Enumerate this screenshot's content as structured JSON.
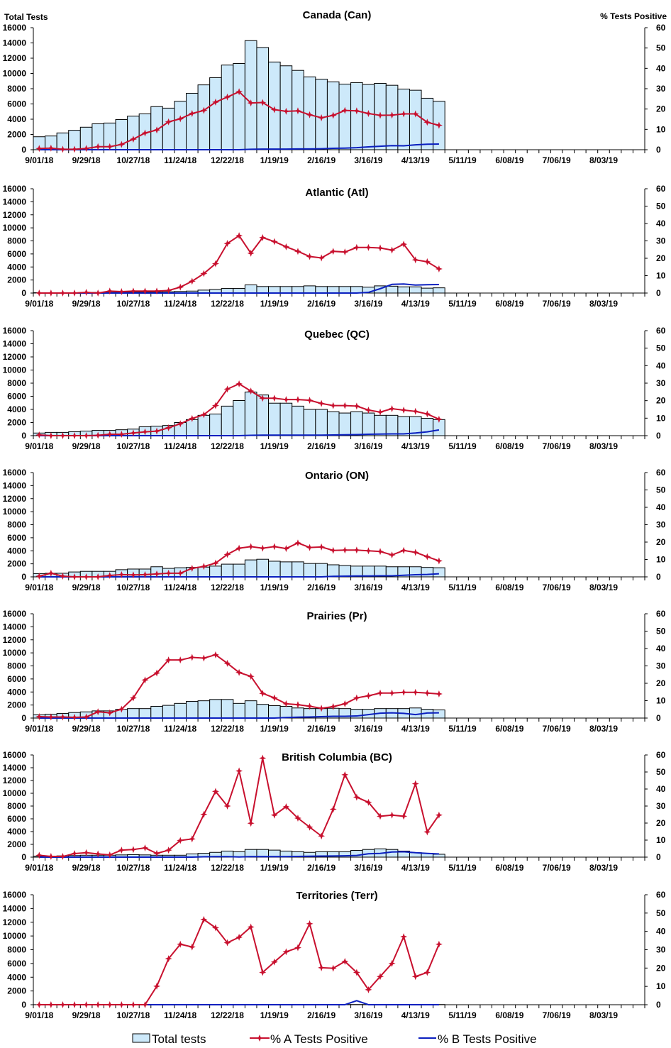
{
  "axis_titles": {
    "left": "Total Tests",
    "right": "% Tests Positive"
  },
  "legend": {
    "bars": "Total tests",
    "a": "% A Tests Positive",
    "b": "% B Tests Positive"
  },
  "colors": {
    "bar_fill": "#cde9fa",
    "bar_stroke": "#000000",
    "a_line": "#c8102e",
    "b_line": "#0a1fbf"
  },
  "x_tick_labels": [
    "9/01/18",
    "9/29/18",
    "10/27/18",
    "11/24/18",
    "12/22/18",
    "1/19/19",
    "2/16/19",
    "3/16/19",
    "4/13/19",
    "5/11/19",
    "6/08/19",
    "7/06/19",
    "8/03/19"
  ],
  "left_ticks": [
    0,
    2000,
    4000,
    6000,
    8000,
    10000,
    12000,
    14000,
    16000
  ],
  "right_ticks": [
    0,
    10,
    20,
    30,
    40,
    50,
    60
  ],
  "chart_data": [
    {
      "type": "bar+line",
      "title": "Canada (Can)",
      "ylim": [
        0,
        16000
      ],
      "y2lim": [
        0,
        60
      ],
      "total_tests": [
        1700,
        1800,
        2200,
        2550,
        2950,
        3400,
        3500,
        3950,
        4400,
        4700,
        5650,
        5450,
        6350,
        7400,
        8500,
        9450,
        11100,
        11300,
        14300,
        13400,
        11500,
        11000,
        10400,
        9550,
        9250,
        8900,
        8600,
        8800,
        8550,
        8700,
        8450,
        7950,
        7800,
        6750,
        6350
      ],
      "pct_a": [
        0.6,
        0.8,
        0.2,
        0.2,
        0.6,
        1.5,
        1.5,
        2.6,
        5.2,
        8.2,
        9.7,
        13.7,
        15.2,
        17.8,
        19.3,
        23.4,
        25.9,
        28.5,
        23,
        23.2,
        19.7,
        18.9,
        19.1,
        17.2,
        15.7,
        16.9,
        19.3,
        19.1,
        17.8,
        16.9,
        17,
        17.6,
        17.6,
        13.5,
        12
      ],
      "pct_b": [
        0,
        0,
        0,
        0,
        0,
        0,
        0,
        0,
        0,
        0,
        0,
        0,
        0,
        0,
        0,
        0,
        0,
        0,
        0.2,
        0.3,
        0.3,
        0.3,
        0.4,
        0.4,
        0.5,
        0.7,
        0.8,
        1.0,
        1.4,
        1.7,
        2.0,
        1.9,
        2.4,
        2.7,
        2.8
      ]
    },
    {
      "type": "bar+line",
      "title": "Atlantic (Atl)",
      "ylim": [
        0,
        16000
      ],
      "y2lim": [
        0,
        60
      ],
      "total_tests": [
        50,
        50,
        50,
        50,
        80,
        100,
        100,
        150,
        150,
        150,
        150,
        200,
        250,
        300,
        450,
        550,
        700,
        700,
        1250,
        1000,
        1000,
        1000,
        1000,
        1100,
        1000,
        1000,
        1000,
        1000,
        900,
        1100,
        1050,
        950,
        950,
        750,
        800
      ],
      "pct_a": [
        0,
        0,
        0,
        0,
        0.4,
        0,
        1.1,
        0.8,
        1.1,
        1.1,
        1.1,
        1.5,
        3.4,
        6.8,
        11.2,
        16.9,
        28.5,
        33,
        22.9,
        31.9,
        29.6,
        26.6,
        24,
        21,
        20.2,
        24,
        23.6,
        26.2,
        26.2,
        25.9,
        24.7,
        28.1,
        19.1,
        18,
        13.9
      ],
      "pct_b": [
        0,
        0,
        0,
        0,
        0,
        0,
        0,
        0,
        0,
        0,
        0,
        0,
        0,
        0,
        0,
        0,
        0,
        0,
        0,
        0,
        0,
        0,
        0,
        0,
        0,
        0,
        0,
        0,
        0.4,
        2.5,
        5.0,
        5.2,
        4.6,
        4.8,
        4.9
      ]
    },
    {
      "type": "bar+line",
      "title": "Quebec (QC)",
      "ylim": [
        0,
        16000
      ],
      "y2lim": [
        0,
        60
      ],
      "total_tests": [
        400,
        500,
        500,
        600,
        700,
        800,
        800,
        900,
        1000,
        1350,
        1450,
        1550,
        2000,
        2450,
        3100,
        3300,
        4500,
        5350,
        6650,
        6200,
        4950,
        4950,
        4500,
        4000,
        4000,
        3650,
        3450,
        3650,
        3450,
        3100,
        3100,
        2900,
        2900,
        2650,
        2450
      ],
      "pct_a": [
        0.4,
        0,
        0,
        0,
        0,
        0.2,
        0.8,
        0.8,
        1.5,
        2.2,
        2.6,
        4.5,
        6.8,
        9.8,
        12,
        17.2,
        26.6,
        29.6,
        25.5,
        21.4,
        21.4,
        20.6,
        20.6,
        20.2,
        18.4,
        17.2,
        17.2,
        16.9,
        14.6,
        13.5,
        15.4,
        14.6,
        13.9,
        12.4,
        9.4
      ],
      "pct_b": [
        0,
        0,
        0,
        0,
        0,
        0,
        0,
        0,
        0,
        0,
        0,
        0,
        0,
        0,
        0,
        0,
        0,
        0,
        0.2,
        0.3,
        0.3,
        0.3,
        0.3,
        0.3,
        0.3,
        0.4,
        0.5,
        0.6,
        0.8,
        0.9,
        1.0,
        1.0,
        1.5,
        2.2,
        3.3
      ]
    },
    {
      "type": "bar+line",
      "title": "Ontario (ON)",
      "ylim": [
        0,
        16000
      ],
      "y2lim": [
        0,
        60
      ],
      "total_tests": [
        500,
        550,
        550,
        750,
        850,
        850,
        850,
        1100,
        1200,
        1200,
        1550,
        1300,
        1400,
        1450,
        1500,
        1650,
        1950,
        1950,
        2600,
        2700,
        2400,
        2300,
        2300,
        2050,
        2050,
        1850,
        1750,
        1650,
        1650,
        1650,
        1550,
        1550,
        1550,
        1450,
        1400
      ],
      "pct_a": [
        0.4,
        2.1,
        0.4,
        0,
        0,
        0,
        0.8,
        1.3,
        1.1,
        1.3,
        1.7,
        2.1,
        2.1,
        4.9,
        6,
        7.9,
        12.9,
        16.5,
        17.4,
        16.5,
        17.4,
        16.3,
        19.5,
        16.9,
        17.2,
        15.2,
        15.4,
        15.4,
        15,
        14.6,
        12.6,
        15.2,
        14.1,
        11.6,
        9.2
      ],
      "pct_b": [
        0,
        0,
        0,
        0,
        0,
        0,
        0,
        0,
        0,
        0,
        0,
        0,
        0,
        0,
        0,
        0,
        0,
        0,
        0,
        0,
        0,
        0,
        0,
        0,
        0,
        0.3,
        0.4,
        0.5,
        0.5,
        0.6,
        0.6,
        0.9,
        1.2,
        1.4,
        1.8
      ]
    },
    {
      "type": "bar+line",
      "title": "Prairies (Pr)",
      "ylim": [
        0,
        16000
      ],
      "y2lim": [
        0,
        60
      ],
      "total_tests": [
        500,
        600,
        700,
        850,
        950,
        1100,
        1100,
        1350,
        1450,
        1450,
        1800,
        1950,
        2250,
        2550,
        2650,
        2850,
        2850,
        2250,
        2650,
        2100,
        1900,
        1800,
        1550,
        1450,
        1450,
        1500,
        1450,
        1350,
        1350,
        1450,
        1450,
        1450,
        1550,
        1350,
        1250
      ],
      "pct_a": [
        0.8,
        0.6,
        0.6,
        0.4,
        0.6,
        3.6,
        3,
        5.1,
        11.6,
        21.9,
        25.9,
        33.4,
        33.4,
        34.9,
        34.5,
        36.4,
        31.5,
        26.2,
        24,
        14.2,
        11.6,
        8.2,
        7.7,
        6.8,
        5.6,
        6.6,
        8.2,
        11.6,
        12.8,
        14.4,
        14.4,
        14.8,
        14.8,
        14.4,
        13.9
      ],
      "pct_b": [
        0,
        0,
        0,
        0,
        0,
        0,
        0,
        0,
        0,
        0,
        0,
        0,
        0,
        0,
        0,
        0,
        0,
        0,
        0,
        0,
        0,
        0.3,
        0.5,
        0.6,
        0.8,
        1.0,
        1.0,
        1.2,
        2.0,
        2.8,
        3.0,
        2.7,
        2.0,
        2.9,
        3.0
      ]
    },
    {
      "type": "bar+line",
      "title": "British Columbia (BC)",
      "ylim": [
        0,
        16000
      ],
      "y2lim": [
        0,
        60
      ],
      "total_tests": [
        150,
        150,
        200,
        250,
        300,
        300,
        300,
        350,
        400,
        350,
        300,
        300,
        300,
        500,
        600,
        750,
        950,
        850,
        1200,
        1200,
        1100,
        950,
        850,
        750,
        850,
        850,
        850,
        1050,
        1200,
        1300,
        1200,
        950,
        700,
        600,
        450
      ],
      "pct_a": [
        1.1,
        0.4,
        0.4,
        2.1,
        2.6,
        1.9,
        1.3,
        4.1,
        4.5,
        5.4,
        2.2,
        4.1,
        9.8,
        10.7,
        25.1,
        38.6,
        30,
        50.6,
        19.9,
        58.1,
        24.7,
        29.6,
        22.9,
        17.6,
        12.4,
        28.1,
        48.4,
        35.2,
        32.2,
        24,
        24.7,
        24,
        43.1,
        14.8,
        24.7
      ],
      "pct_b": [
        0,
        0,
        0,
        0,
        0,
        0,
        0,
        0,
        0,
        0,
        0,
        0,
        0,
        0,
        0.2,
        0.3,
        0.3,
        0.1,
        0.3,
        0.3,
        0.3,
        0.3,
        0.4,
        0.5,
        0.6,
        0.7,
        0.8,
        1.0,
        2.0,
        2.2,
        3.0,
        3.2,
        2.6,
        2.2,
        1.9
      ]
    },
    {
      "type": "bar+line",
      "title": "Territories (Terr)",
      "ylim": [
        0,
        16000
      ],
      "y2lim": [
        0,
        60
      ],
      "total_tests": [
        10,
        10,
        10,
        10,
        10,
        10,
        10,
        10,
        10,
        10,
        30,
        30,
        30,
        30,
        30,
        30,
        30,
        30,
        30,
        30,
        30,
        30,
        30,
        30,
        30,
        30,
        30,
        30,
        30,
        30,
        30,
        30,
        30,
        30,
        30
      ],
      "pct_a": [
        0,
        0,
        0,
        0,
        0,
        0,
        0,
        0,
        0,
        0,
        10.1,
        25.1,
        33,
        31.5,
        46.5,
        42,
        33.8,
        36.8,
        42.4,
        17.6,
        23.3,
        28.9,
        31.1,
        44.2,
        20.2,
        19.9,
        23.6,
        17.6,
        8.2,
        15.4,
        22.5,
        37.1,
        15.4,
        17.6,
        33
      ],
      "pct_b": [
        0,
        0,
        0,
        0,
        0,
        0,
        0,
        0,
        0,
        0,
        0,
        0,
        0,
        0,
        0,
        0,
        0,
        0,
        0,
        0,
        0,
        0,
        0,
        0,
        0,
        0,
        0,
        2.2,
        0,
        0,
        0,
        0,
        0,
        0,
        0
      ]
    }
  ]
}
